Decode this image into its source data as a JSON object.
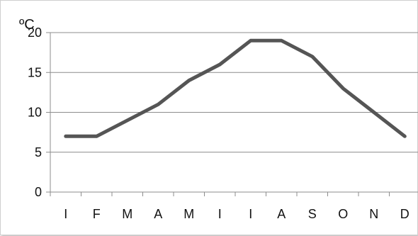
{
  "chart_data": {
    "type": "line",
    "ylabel": "ºC",
    "xlabel": "",
    "title": "",
    "categories": [
      "I",
      "F",
      "M",
      "A",
      "M",
      "I",
      "I",
      "A",
      "S",
      "O",
      "N",
      "D"
    ],
    "series": [
      {
        "values": [
          7,
          7,
          9,
          11,
          14,
          16,
          19,
          19,
          17,
          13,
          10,
          7
        ]
      }
    ],
    "ylim": [
      0,
      20
    ],
    "yticks": [
      0,
      5,
      10,
      15,
      20
    ],
    "grid": "horizontal",
    "line_color": "#555555",
    "grid_color": "#8c8c8c"
  }
}
